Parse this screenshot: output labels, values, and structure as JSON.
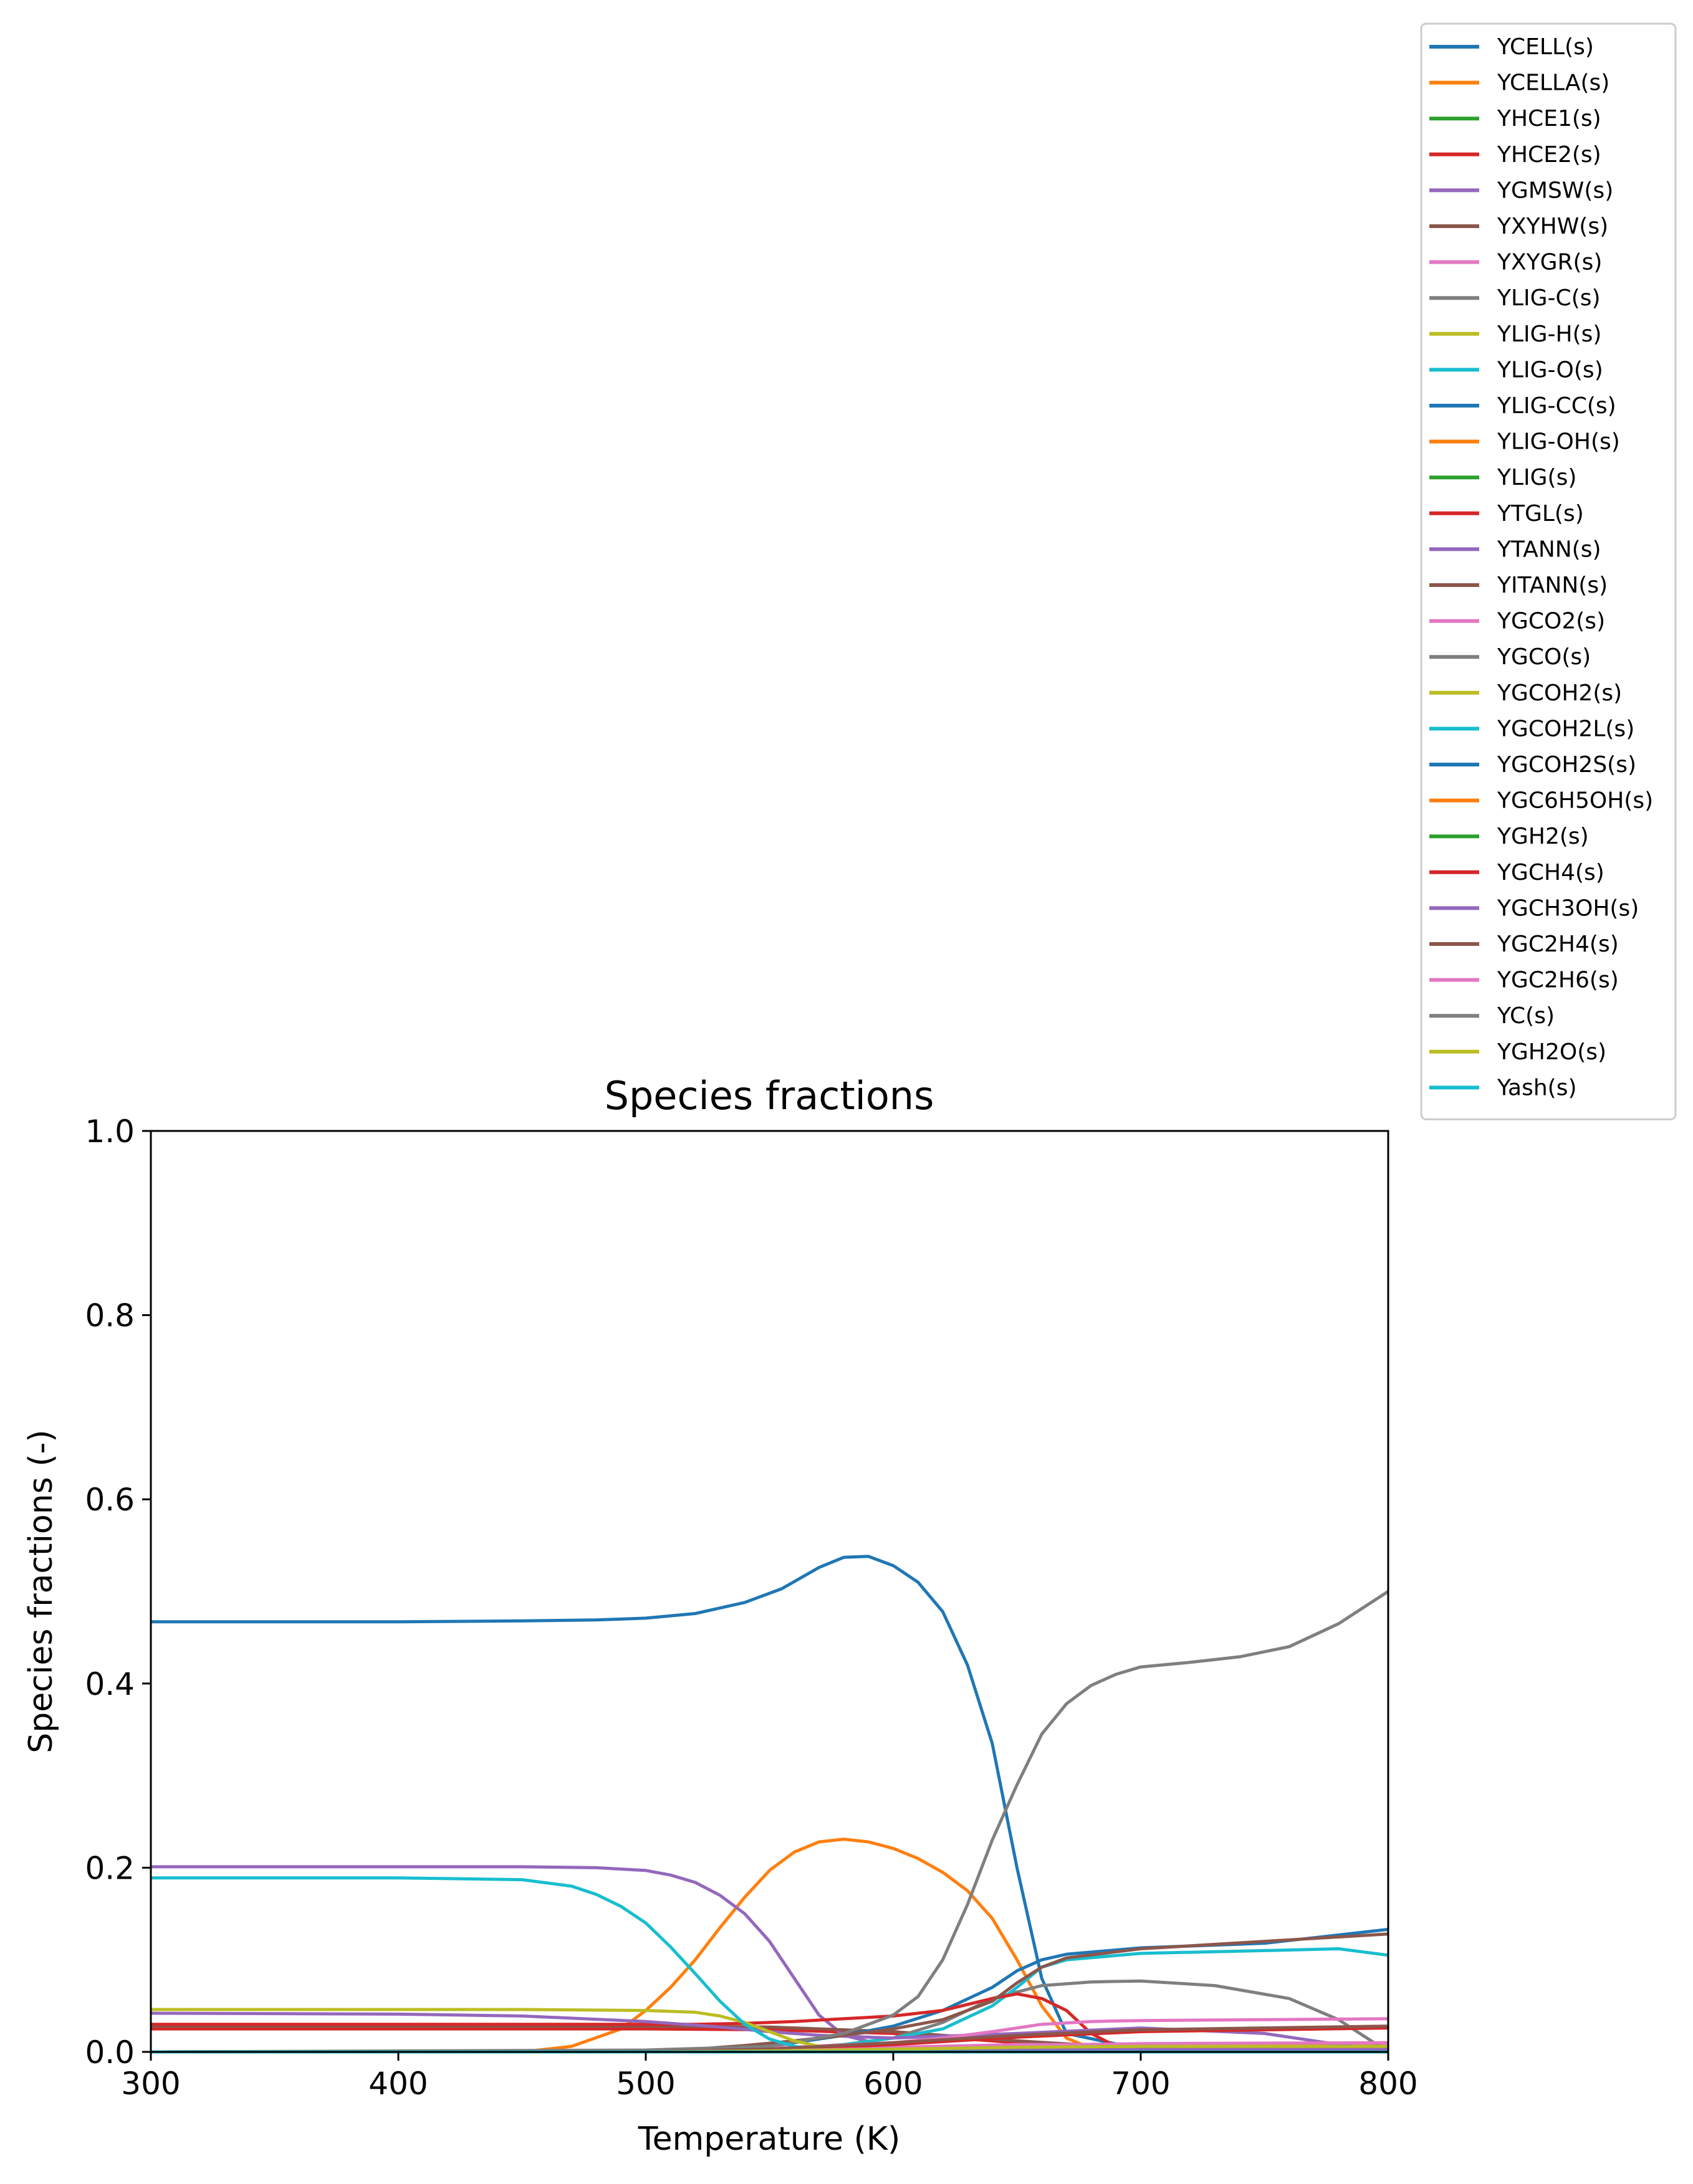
{
  "chart_data": {
    "type": "line",
    "title": "Species fractions",
    "xlabel": "Temperature (K)",
    "ylabel": "Species fractions (-)",
    "xlim": [
      300,
      800
    ],
    "ylim": [
      0,
      1.0
    ],
    "xticks": [
      "300",
      "400",
      "500",
      "600",
      "700",
      "800"
    ],
    "yticks": [
      "0.0",
      "0.2",
      "0.4",
      "0.6",
      "0.8",
      "1.0"
    ],
    "grid": false,
    "legend_position": "outside-top-right",
    "series": [
      {
        "name": "YCELL(s)",
        "color": "#1f77b4",
        "x": [
          300,
          400,
          450,
          480,
          500,
          520,
          540,
          555,
          570,
          580,
          590,
          600,
          610,
          620,
          630,
          640,
          650,
          660,
          670,
          700,
          800
        ],
        "y": [
          0.467,
          0.467,
          0.468,
          0.469,
          0.471,
          0.476,
          0.488,
          0.503,
          0.526,
          0.537,
          0.538,
          0.528,
          0.51,
          0.478,
          0.42,
          0.335,
          0.2,
          0.08,
          0.02,
          0.003,
          0.001
        ]
      },
      {
        "name": "YCELLA(s)",
        "color": "#ff7f0e",
        "x": [
          300,
          450,
          470,
          490,
          500,
          510,
          520,
          530,
          540,
          550,
          560,
          570,
          580,
          590,
          600,
          610,
          620,
          630,
          640,
          650,
          660,
          670,
          680,
          700,
          800
        ],
        "y": [
          0.0,
          0.0,
          0.006,
          0.025,
          0.045,
          0.07,
          0.1,
          0.135,
          0.168,
          0.197,
          0.217,
          0.228,
          0.231,
          0.228,
          0.221,
          0.21,
          0.195,
          0.175,
          0.145,
          0.1,
          0.05,
          0.015,
          0.004,
          0.001,
          0.0
        ]
      },
      {
        "name": "YHCE1(s)",
        "color": "#2ca02c",
        "x": [
          300,
          500,
          550,
          600,
          650,
          700,
          800
        ],
        "y": [
          0.0,
          0.0,
          0.0,
          0.0,
          0.0,
          0.0,
          0.0
        ]
      },
      {
        "name": "YHCE2(s)",
        "color": "#d62728",
        "x": [
          300,
          500,
          550,
          600,
          650,
          700,
          800
        ],
        "y": [
          0.025,
          0.025,
          0.024,
          0.02,
          0.01,
          0.003,
          0.001
        ]
      },
      {
        "name": "YGMSW(s)",
        "color": "#9467bd",
        "x": [
          300,
          400,
          450,
          480,
          500,
          510,
          520,
          530,
          540,
          550,
          560,
          570,
          580,
          600,
          700,
          800
        ],
        "y": [
          0.201,
          0.201,
          0.201,
          0.2,
          0.197,
          0.192,
          0.184,
          0.17,
          0.15,
          0.12,
          0.08,
          0.04,
          0.018,
          0.005,
          0.001,
          0.0
        ]
      },
      {
        "name": "YXYHW(s)",
        "color": "#8c564b",
        "x": [
          300,
          400,
          500,
          550,
          600,
          650,
          700,
          800
        ],
        "y": [
          0.028,
          0.028,
          0.028,
          0.027,
          0.022,
          0.012,
          0.004,
          0.001
        ]
      },
      {
        "name": "YXYGR(s)",
        "color": "#e377c2",
        "x": [
          300,
          400,
          500,
          550,
          600,
          650,
          700,
          800
        ],
        "y": [
          0.0,
          0.0,
          0.0,
          0.002,
          0.005,
          0.008,
          0.008,
          0.008
        ]
      },
      {
        "name": "YLIG-C(s)",
        "color": "#7f7f7f",
        "x": [
          300,
          500,
          550,
          580,
          600,
          620,
          640,
          660,
          680,
          700,
          730,
          760,
          780,
          800
        ],
        "y": [
          0.0,
          0.001,
          0.003,
          0.008,
          0.015,
          0.032,
          0.058,
          0.072,
          0.076,
          0.077,
          0.072,
          0.058,
          0.035,
          0.0
        ]
      },
      {
        "name": "YLIG-H(s)",
        "color": "#bcbd22",
        "x": [
          300,
          400,
          500,
          550,
          600,
          650,
          700,
          800
        ],
        "y": [
          0.0,
          0.0,
          0.0,
          0.001,
          0.002,
          0.003,
          0.004,
          0.004
        ]
      },
      {
        "name": "YLIG-O(s)",
        "color": "#17becf",
        "x": [
          300,
          500,
          550,
          580,
          600,
          620,
          640,
          650,
          660,
          670,
          700,
          750,
          780,
          800
        ],
        "y": [
          0.0,
          0.0,
          0.002,
          0.008,
          0.015,
          0.025,
          0.05,
          0.07,
          0.092,
          0.1,
          0.107,
          0.11,
          0.112,
          0.105
        ]
      },
      {
        "name": "YLIG-CC(s)",
        "color": "#1f77b4",
        "x": [
          300,
          500,
          550,
          580,
          600,
          620,
          640,
          650,
          660,
          670,
          700,
          750,
          780,
          800
        ],
        "y": [
          0.0,
          0.001,
          0.006,
          0.018,
          0.028,
          0.045,
          0.07,
          0.088,
          0.1,
          0.106,
          0.113,
          0.118,
          0.127,
          0.133
        ]
      },
      {
        "name": "YLIG-OH(s)",
        "color": "#ff7f0e",
        "x": [
          300,
          500,
          550,
          600,
          650,
          700,
          800
        ],
        "y": [
          0.0,
          0.0,
          0.001,
          0.003,
          0.006,
          0.008,
          0.01
        ]
      },
      {
        "name": "YLIG(s)",
        "color": "#2ca02c",
        "x": [
          300,
          500,
          550,
          600,
          650,
          700,
          800
        ],
        "y": [
          0.0,
          0.0,
          0.0,
          0.0,
          0.0,
          0.0,
          0.0
        ]
      },
      {
        "name": "YTGL(s)",
        "color": "#d62728",
        "x": [
          300,
          450,
          500,
          520,
          540,
          560,
          580,
          600,
          620,
          640,
          650,
          660,
          670,
          680,
          690,
          700,
          800
        ],
        "y": [
          0.03,
          0.03,
          0.03,
          0.03,
          0.031,
          0.033,
          0.036,
          0.039,
          0.045,
          0.058,
          0.063,
          0.058,
          0.045,
          0.02,
          0.006,
          0.002,
          0.0
        ]
      },
      {
        "name": "YTANN(s)",
        "color": "#9467bd",
        "x": [
          300,
          400,
          450,
          500,
          530,
          550,
          570,
          600,
          650,
          700,
          750,
          780,
          800
        ],
        "y": [
          0.042,
          0.041,
          0.039,
          0.033,
          0.027,
          0.022,
          0.018,
          0.015,
          0.02,
          0.026,
          0.02,
          0.008,
          0.002
        ]
      },
      {
        "name": "YITANN(s)",
        "color": "#8c564b",
        "x": [
          300,
          500,
          520,
          540,
          560,
          580,
          600,
          620,
          640,
          650,
          660,
          670,
          700,
          750,
          800
        ],
        "y": [
          0.0,
          0.001,
          0.003,
          0.007,
          0.012,
          0.018,
          0.025,
          0.035,
          0.055,
          0.075,
          0.092,
          0.102,
          0.112,
          0.12,
          0.128
        ]
      },
      {
        "name": "YGCO2(s)",
        "color": "#e377c2",
        "x": [
          300,
          500,
          550,
          600,
          620,
          640,
          660,
          680,
          700,
          750,
          800
        ],
        "y": [
          0.0,
          0.001,
          0.004,
          0.01,
          0.015,
          0.022,
          0.03,
          0.033,
          0.034,
          0.035,
          0.036
        ]
      },
      {
        "name": "YGCO(s)",
        "color": "#7f7f7f",
        "x": [
          300,
          500,
          550,
          580,
          600,
          610,
          620,
          630,
          640,
          650,
          660,
          670,
          680,
          690,
          700,
          720,
          740,
          760,
          780,
          800
        ],
        "y": [
          0.0,
          0.002,
          0.006,
          0.02,
          0.04,
          0.06,
          0.1,
          0.16,
          0.23,
          0.29,
          0.345,
          0.378,
          0.398,
          0.41,
          0.418,
          0.423,
          0.429,
          0.44,
          0.465,
          0.5
        ]
      },
      {
        "name": "YGCOH2(s)",
        "color": "#bcbd22",
        "x": [
          300,
          400,
          450,
          500,
          520,
          530,
          540,
          550,
          560,
          570,
          600,
          650,
          700,
          800
        ],
        "y": [
          0.046,
          0.046,
          0.046,
          0.045,
          0.043,
          0.039,
          0.032,
          0.022,
          0.012,
          0.006,
          0.002,
          0.001,
          0.001,
          0.001
        ]
      },
      {
        "name": "YGCOH2L(s)",
        "color": "#17becf",
        "x": [
          300,
          400,
          450,
          470,
          480,
          490,
          500,
          510,
          520,
          530,
          540,
          550,
          560,
          570,
          600,
          650,
          700,
          800
        ],
        "y": [
          0.189,
          0.189,
          0.187,
          0.18,
          0.171,
          0.158,
          0.14,
          0.114,
          0.085,
          0.055,
          0.03,
          0.014,
          0.006,
          0.002,
          0.0,
          0.0,
          0.0,
          0.0
        ]
      },
      {
        "name": "YGCOH2S(s)",
        "color": "#1f77b4",
        "x": [
          300,
          500,
          550,
          600,
          650,
          700,
          800
        ],
        "y": [
          0.0,
          0.0,
          0.001,
          0.002,
          0.003,
          0.004,
          0.004
        ]
      },
      {
        "name": "YGC6H5OH(s)",
        "color": "#ff7f0e",
        "x": [
          300,
          500,
          550,
          600,
          650,
          700,
          800
        ],
        "y": [
          0.0,
          0.0,
          0.0,
          0.001,
          0.002,
          0.003,
          0.004
        ]
      },
      {
        "name": "YGH2(s)",
        "color": "#2ca02c",
        "x": [
          300,
          500,
          550,
          600,
          650,
          700,
          800
        ],
        "y": [
          0.0,
          0.0,
          0.0,
          0.0,
          0.0,
          0.0,
          0.0
        ]
      },
      {
        "name": "YGCH4(s)",
        "color": "#d62728",
        "x": [
          300,
          500,
          550,
          600,
          650,
          700,
          800
        ],
        "y": [
          0.0,
          0.0,
          0.002,
          0.008,
          0.016,
          0.022,
          0.026
        ]
      },
      {
        "name": "YGCH3OH(s)",
        "color": "#9467bd",
        "x": [
          300,
          500,
          550,
          600,
          650,
          700,
          800
        ],
        "y": [
          0.0,
          0.0,
          0.0,
          0.001,
          0.002,
          0.003,
          0.003
        ]
      },
      {
        "name": "YGC2H4(s)",
        "color": "#8c564b",
        "x": [
          300,
          500,
          550,
          600,
          650,
          700,
          800
        ],
        "y": [
          0.0,
          0.0,
          0.003,
          0.01,
          0.018,
          0.024,
          0.028
        ]
      },
      {
        "name": "YGC2H6(s)",
        "color": "#e377c2",
        "x": [
          300,
          500,
          550,
          600,
          650,
          700,
          800
        ],
        "y": [
          0.0,
          0.0,
          0.001,
          0.004,
          0.007,
          0.009,
          0.01
        ]
      },
      {
        "name": "YC(s)",
        "color": "#7f7f7f",
        "x": [
          300,
          500,
          550,
          600,
          650,
          700,
          800
        ],
        "y": [
          0.0,
          0.0,
          0.0,
          0.0,
          0.0,
          0.0,
          0.0
        ]
      },
      {
        "name": "YGH2O(s)",
        "color": "#bcbd22",
        "x": [
          300,
          500,
          550,
          600,
          650,
          700,
          800
        ],
        "y": [
          0.0,
          0.0,
          0.001,
          0.003,
          0.005,
          0.006,
          0.006
        ]
      },
      {
        "name": "Yash(s)",
        "color": "#17becf",
        "x": [
          300,
          400,
          500,
          600,
          700,
          800
        ],
        "y": [
          0.0,
          0.0,
          0.0,
          0.0,
          0.0,
          0.0
        ]
      }
    ]
  }
}
